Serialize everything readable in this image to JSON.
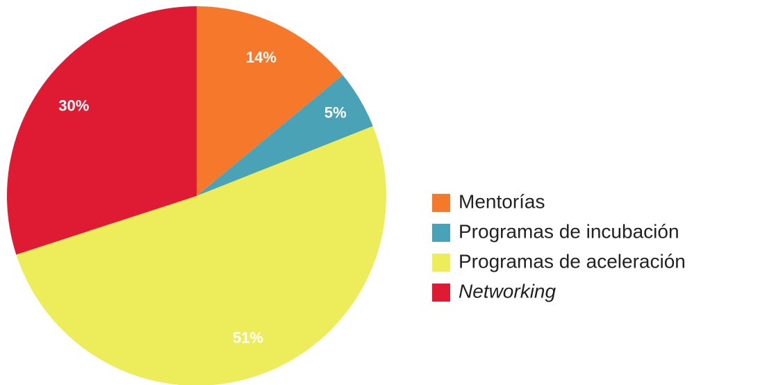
{
  "chart_data": {
    "type": "pie",
    "categories": [
      "Mentorías",
      "Programas de incubación",
      "Programas de aceleración",
      "Networking"
    ],
    "values": [
      14,
      5,
      51,
      30
    ],
    "value_labels": [
      "14%",
      "5%",
      "51%",
      "30%"
    ],
    "colors": [
      "#f6782a",
      "#4aa2b6",
      "#eded5c",
      "#df1a33"
    ],
    "legend": "right"
  }
}
